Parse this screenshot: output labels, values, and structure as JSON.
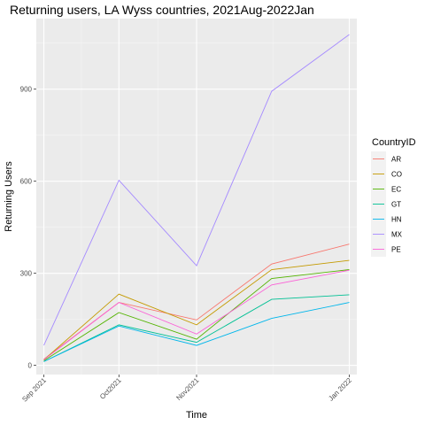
{
  "chart_data": {
    "type": "line",
    "title": "Returning users, LA Wyss countries, 2021Aug-2022Jan",
    "xlabel": "Time",
    "ylabel": "Returning Users",
    "x_ticks": [
      {
        "label": "Sep 2021",
        "day": 0
      },
      {
        "label": "Oct2021",
        "day": 30
      },
      {
        "label": "Nov2021",
        "day": 61
      },
      {
        "label": "Jan 2022",
        "day": 122
      }
    ],
    "x_days": [
      0,
      30,
      61,
      91,
      122
    ],
    "xlim": [
      -3,
      125
    ],
    "ylim": [
      -30,
      1130
    ],
    "y_ticks": [
      0,
      300,
      600,
      900
    ],
    "legend_title": "CountryID",
    "legend_position": "right",
    "series": [
      {
        "name": "AR",
        "color": "#F8766D",
        "values": [
          20,
          205,
          148,
          330,
          395
        ]
      },
      {
        "name": "CO",
        "color": "#C49A00",
        "values": [
          18,
          232,
          132,
          312,
          342
        ]
      },
      {
        "name": "EC",
        "color": "#53B400",
        "values": [
          15,
          172,
          85,
          283,
          312
        ]
      },
      {
        "name": "GT",
        "color": "#00C094",
        "values": [
          12,
          132,
          75,
          215,
          230
        ]
      },
      {
        "name": "HN",
        "color": "#00B6EB",
        "values": [
          12,
          128,
          65,
          153,
          205
        ]
      },
      {
        "name": "MX",
        "color": "#A58AFF",
        "values": [
          65,
          603,
          325,
          893,
          1078
        ]
      },
      {
        "name": "PE",
        "color": "#FB61D7",
        "values": [
          18,
          205,
          102,
          262,
          310
        ]
      }
    ]
  }
}
